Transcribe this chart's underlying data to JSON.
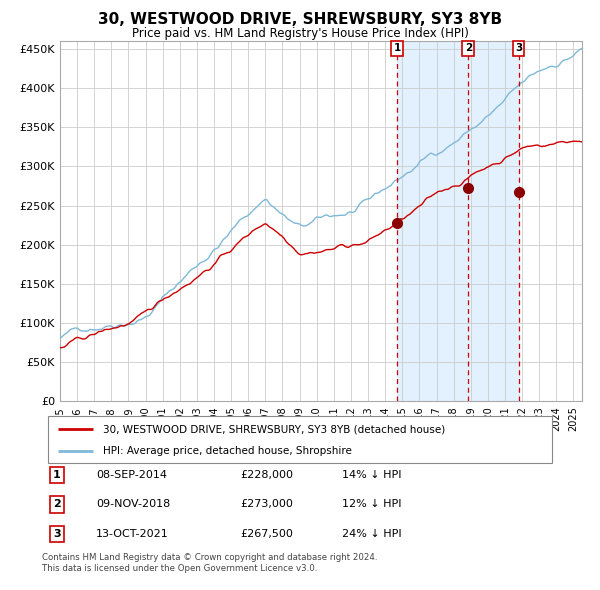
{
  "title": "30, WESTWOOD DRIVE, SHREWSBURY, SY3 8YB",
  "subtitle": "Price paid vs. HM Land Registry's House Price Index (HPI)",
  "legend_line1": "30, WESTWOOD DRIVE, SHREWSBURY, SY3 8YB (detached house)",
  "legend_line2": "HPI: Average price, detached house, Shropshire",
  "footnote1": "Contains HM Land Registry data © Crown copyright and database right 2024.",
  "footnote2": "This data is licensed under the Open Government Licence v3.0.",
  "sales": [
    {
      "label": "1",
      "date_str": "08-SEP-2014",
      "date_x": 2014.69,
      "price": 228000,
      "pct": "14%",
      "dir": "↓"
    },
    {
      "label": "2",
      "date_str": "09-NOV-2018",
      "date_x": 2018.86,
      "price": 273000,
      "pct": "12%",
      "dir": "↓"
    },
    {
      "label": "3",
      "date_str": "13-OCT-2021",
      "date_x": 2021.79,
      "price": 267500,
      "pct": "24%",
      "dir": "↓"
    }
  ],
  "hpi_color": "#7fb8d8",
  "price_color": "#cc0000",
  "shade_color": "#ddeeff",
  "dashed_color": "#cc0000",
  "marker_color": "#8b0000",
  "ylim": [
    0,
    460000
  ],
  "xlim_start": 1995.0,
  "xlim_end": 2025.5,
  "yticks": [
    0,
    50000,
    100000,
    150000,
    200000,
    250000,
    300000,
    350000,
    400000,
    450000
  ],
  "background_color": "#ffffff",
  "grid_color": "#cccccc"
}
